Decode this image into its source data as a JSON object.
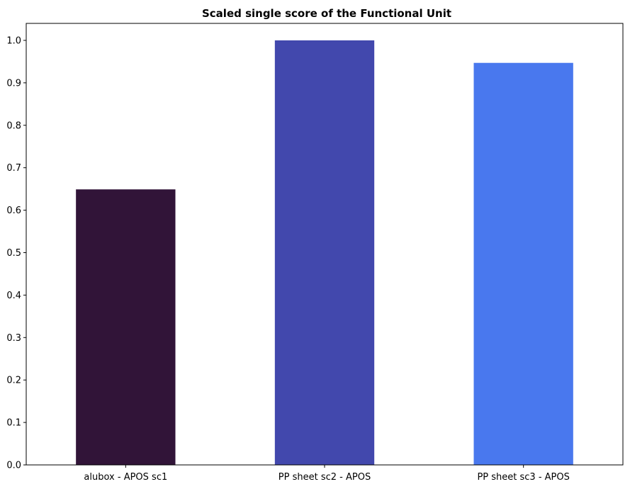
{
  "chart_data": {
    "type": "bar",
    "title": "Scaled single score of the Functional Unit",
    "xlabel": "",
    "ylabel": "",
    "categories": [
      "alubox - APOS sc1",
      "PP sheet sc2 - APOS",
      "PP sheet sc3 - APOS"
    ],
    "values": [
      0.649,
      1.0,
      0.947
    ],
    "colors": [
      "#311438",
      "#4248ad",
      "#4978ee"
    ],
    "ylim": [
      0,
      1.04
    ],
    "yticks": [
      0.0,
      0.1,
      0.2,
      0.3,
      0.4,
      0.5,
      0.6,
      0.7,
      0.8,
      0.9,
      1.0
    ],
    "ytick_labels": [
      "0.0",
      "0.1",
      "0.2",
      "0.3",
      "0.4",
      "0.5",
      "0.6",
      "0.7",
      "0.8",
      "0.9",
      "1.0"
    ],
    "grid": false,
    "legend": "none"
  }
}
